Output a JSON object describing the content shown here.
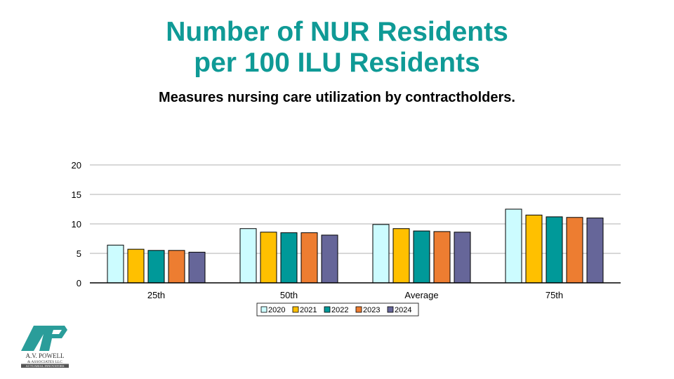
{
  "title_line1": "Number of NUR Residents",
  "title_line2": "per 100 ILU Residents",
  "subtitle": "Measures nursing care utilization by contractholders.",
  "logo": {
    "name": "A.V. POWELL",
    "sub": "& ASSOCIATES LLC",
    "tagline": "ACTUARIAL INNOVATORS"
  },
  "chart_data": {
    "type": "bar",
    "title": "Number of NUR Residents per 100 ILU Residents",
    "xlabel": "",
    "ylabel": "",
    "ylim": [
      0,
      20
    ],
    "yticks": [
      0,
      5,
      10,
      15,
      20
    ],
    "grid": true,
    "legend_position": "bottom",
    "categories": [
      "25th",
      "50th",
      "Average",
      "75th"
    ],
    "series": [
      {
        "name": "2020",
        "color": "#ccfcff",
        "values": [
          6.4,
          9.2,
          9.9,
          12.5
        ]
      },
      {
        "name": "2021",
        "color": "#ffc000",
        "values": [
          5.7,
          8.6,
          9.2,
          11.5
        ]
      },
      {
        "name": "2022",
        "color": "#009999",
        "values": [
          5.5,
          8.5,
          8.8,
          11.2
        ]
      },
      {
        "name": "2023",
        "color": "#ed7d31",
        "values": [
          5.5,
          8.5,
          8.7,
          11.1
        ]
      },
      {
        "name": "2024",
        "color": "#666699",
        "values": [
          5.2,
          8.1,
          8.6,
          11.0
        ]
      }
    ]
  }
}
